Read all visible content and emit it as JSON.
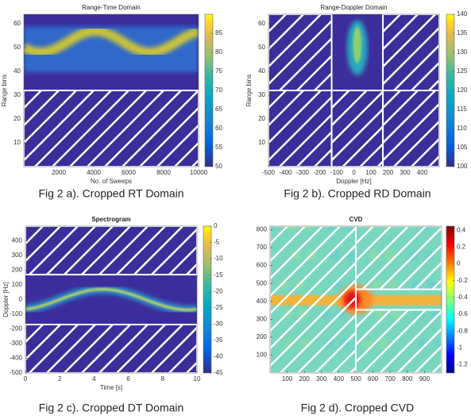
{
  "chart_data": [
    {
      "type": "heatmap",
      "title": "Range-Time Domain",
      "xlabel": "No. of Sweeps",
      "ylabel": "Range bins",
      "xlim": [
        0,
        10000
      ],
      "xticks": [
        2000,
        4000,
        6000,
        8000,
        10000
      ],
      "ylim": [
        0,
        64
      ],
      "yticks": [
        10,
        20,
        30,
        40,
        50,
        60
      ],
      "colormap": "parula",
      "clim": [
        50,
        90
      ],
      "cticks": [
        50,
        55,
        60,
        65,
        70,
        75,
        80,
        85
      ],
      "caption": "Fig 2 a). Cropped RT Domain"
    },
    {
      "type": "heatmap",
      "title": "Range-Doppler Domain",
      "xlabel": "Doppler [Hz]",
      "ylabel": "Range bins",
      "xlim": [
        -500,
        500
      ],
      "xticks": [
        -500,
        -400,
        -300,
        -200,
        -100,
        0,
        100,
        200,
        300,
        400
      ],
      "ylim": [
        0,
        64
      ],
      "yticks": [
        10,
        20,
        30,
        40,
        50,
        60
      ],
      "colormap": "parula",
      "clim": [
        100,
        140
      ],
      "cticks": [
        100,
        105,
        110,
        115,
        120,
        125,
        130,
        135,
        140
      ],
      "caption": "Fig 2 b). Cropped RD Domain"
    },
    {
      "type": "heatmap",
      "title": "Spectrogram",
      "xlabel": "Time [s]",
      "ylabel": "Doppler [Hz]",
      "xlim": [
        0,
        10
      ],
      "xticks": [
        0,
        2,
        4,
        6,
        8,
        10
      ],
      "ylim": [
        -500,
        500
      ],
      "yticks": [
        -500,
        -400,
        -300,
        -200,
        -100,
        0,
        100,
        200,
        300,
        400
      ],
      "colormap": "parula",
      "clim": [
        -45,
        0
      ],
      "cticks": [
        -45,
        -40,
        -35,
        -30,
        -25,
        -20,
        -15,
        -10,
        -5,
        0
      ],
      "caption": "Fig 2 c). Cropped DT Domain"
    },
    {
      "type": "heatmap",
      "title": "CVD",
      "xlim": [
        0,
        1000
      ],
      "xticks": [
        100,
        200,
        300,
        400,
        500,
        600,
        700,
        800,
        900
      ],
      "ylim": [
        0,
        820
      ],
      "yticks": [
        100,
        200,
        300,
        400,
        500,
        600,
        700,
        800
      ],
      "colormap": "jet",
      "clim": [
        -1.3,
        0.45
      ],
      "cticks": [
        -1.2,
        -1,
        -0.8,
        -0.6,
        -0.4,
        -0.2,
        0,
        0.2,
        0.4
      ],
      "caption": "Fig 2 d). Cropped CVD"
    }
  ]
}
